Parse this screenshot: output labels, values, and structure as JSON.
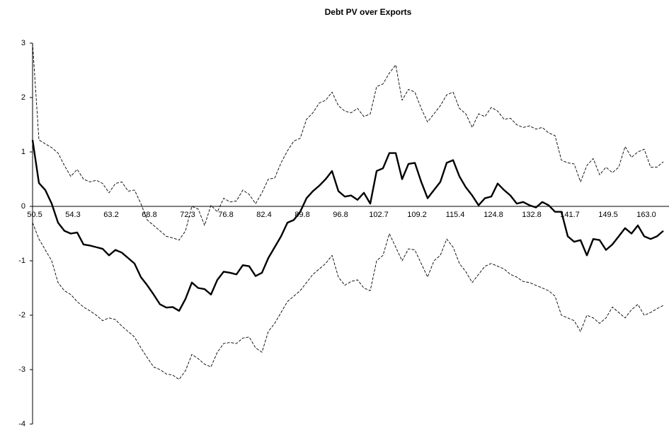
{
  "chart_data": {
    "type": "line",
    "title": "Debt PV over Exports",
    "categories": [
      "50.5",
      null,
      null,
      null,
      null,
      null,
      "54.3",
      null,
      null,
      null,
      null,
      null,
      "63.2",
      null,
      null,
      null,
      null,
      null,
      "68.8",
      null,
      null,
      null,
      null,
      null,
      "72.3",
      null,
      null,
      null,
      null,
      null,
      "76.8",
      null,
      null,
      null,
      null,
      null,
      "82.4",
      null,
      null,
      null,
      null,
      null,
      "89.8",
      null,
      null,
      null,
      null,
      null,
      "96.8",
      null,
      null,
      null,
      null,
      null,
      "102.7",
      null,
      null,
      null,
      null,
      null,
      "109.2",
      null,
      null,
      null,
      null,
      null,
      "115.4",
      null,
      null,
      null,
      null,
      null,
      "124.8",
      null,
      null,
      null,
      null,
      null,
      "132.8",
      null,
      null,
      null,
      null,
      null,
      "141.7",
      null,
      null,
      null,
      null,
      null,
      "149.5",
      null,
      null,
      null,
      null,
      null,
      "163.0",
      null,
      null,
      null
    ],
    "series": [
      {
        "color": "#000000",
        "style": "solid",
        "values": [
          1.22,
          0.43,
          0.3,
          0.05,
          -0.3,
          -0.45,
          -0.5,
          -0.48,
          -0.7,
          -0.72,
          -0.75,
          -0.78,
          -0.9,
          -0.8,
          -0.85,
          -0.95,
          -1.05,
          -1.3,
          -1.45,
          -1.62,
          -1.8,
          -1.86,
          -1.85,
          -1.92,
          -1.7,
          -1.4,
          -1.5,
          -1.52,
          -1.62,
          -1.35,
          -1.2,
          -1.22,
          -1.25,
          -1.08,
          -1.1,
          -1.28,
          -1.22,
          -0.95,
          -0.75,
          -0.55,
          -0.3,
          -0.25,
          -0.1,
          0.15,
          0.28,
          0.38,
          0.5,
          0.65,
          0.28,
          0.18,
          0.2,
          0.12,
          0.25,
          0.05,
          0.65,
          0.7,
          0.98,
          0.98,
          0.5,
          0.78,
          0.8,
          0.45,
          0.15,
          0.3,
          0.45,
          0.8,
          0.85,
          0.55,
          0.35,
          0.2,
          0.02,
          0.15,
          0.18,
          0.42,
          0.3,
          0.2,
          0.05,
          0.08,
          0.02,
          -0.02,
          0.08,
          0.02,
          -0.1,
          -0.1,
          -0.55,
          -0.65,
          -0.62,
          -0.9,
          -0.6,
          -0.62,
          -0.8,
          -0.7,
          -0.55,
          -0.4,
          -0.5,
          -0.35,
          -0.55,
          -0.6,
          -0.55,
          -0.45
        ]
      },
      {
        "color": "#000000",
        "style": "dashed",
        "values": [
          3.0,
          1.22,
          1.15,
          1.08,
          0.98,
          0.75,
          0.55,
          0.68,
          0.5,
          0.45,
          0.48,
          0.42,
          0.25,
          0.42,
          0.45,
          0.28,
          0.3,
          0.05,
          -0.25,
          -0.35,
          -0.45,
          -0.55,
          -0.58,
          -0.62,
          -0.45,
          0.0,
          -0.05,
          -0.35,
          0.02,
          -0.1,
          0.15,
          0.08,
          0.1,
          0.3,
          0.22,
          0.05,
          0.25,
          0.5,
          0.52,
          0.8,
          1.02,
          1.2,
          1.25,
          1.6,
          1.72,
          1.9,
          1.95,
          2.1,
          1.85,
          1.75,
          1.72,
          1.8,
          1.65,
          1.7,
          2.2,
          2.25,
          2.45,
          2.6,
          1.95,
          2.15,
          2.1,
          1.8,
          1.55,
          1.7,
          1.85,
          2.05,
          2.1,
          1.8,
          1.7,
          1.45,
          1.7,
          1.65,
          1.82,
          1.75,
          1.6,
          1.62,
          1.5,
          1.45,
          1.48,
          1.42,
          1.45,
          1.35,
          1.3,
          0.85,
          0.8,
          0.78,
          0.45,
          0.75,
          0.88,
          0.58,
          0.72,
          0.62,
          0.72,
          1.1,
          0.9,
          1.0,
          1.05,
          0.72,
          0.72,
          0.82
        ]
      },
      {
        "color": "#000000",
        "style": "dashed",
        "values": [
          -0.3,
          -0.6,
          -0.8,
          -1.0,
          -1.4,
          -1.55,
          -1.62,
          -1.75,
          -1.85,
          -1.92,
          -2.0,
          -2.1,
          -2.05,
          -2.08,
          -2.2,
          -2.3,
          -2.4,
          -2.6,
          -2.78,
          -2.95,
          -3.0,
          -3.08,
          -3.1,
          -3.18,
          -3.02,
          -2.72,
          -2.8,
          -2.9,
          -2.95,
          -2.68,
          -2.52,
          -2.5,
          -2.52,
          -2.42,
          -2.4,
          -2.6,
          -2.68,
          -2.3,
          -2.15,
          -1.95,
          -1.75,
          -1.65,
          -1.55,
          -1.4,
          -1.25,
          -1.15,
          -1.05,
          -0.9,
          -1.3,
          -1.45,
          -1.38,
          -1.35,
          -1.5,
          -1.55,
          -1.0,
          -0.9,
          -0.5,
          -0.75,
          -1.0,
          -0.78,
          -0.8,
          -1.05,
          -1.3,
          -1.0,
          -0.9,
          -0.6,
          -0.75,
          -1.05,
          -1.2,
          -1.4,
          -1.25,
          -1.1,
          -1.05,
          -1.1,
          -1.15,
          -1.25,
          -1.3,
          -1.38,
          -1.4,
          -1.45,
          -1.5,
          -1.55,
          -1.65,
          -2.0,
          -2.05,
          -2.1,
          -2.3,
          -2.0,
          -2.05,
          -2.15,
          -2.05,
          -1.85,
          -1.95,
          -2.05,
          -1.9,
          -1.8,
          -2.0,
          -1.95,
          -1.88,
          -1.82
        ]
      }
    ],
    "ylim": [
      -4,
      3
    ],
    "yticks": [
      -4,
      -3,
      -2,
      -1,
      0,
      1,
      2,
      3
    ],
    "grid": false
  }
}
